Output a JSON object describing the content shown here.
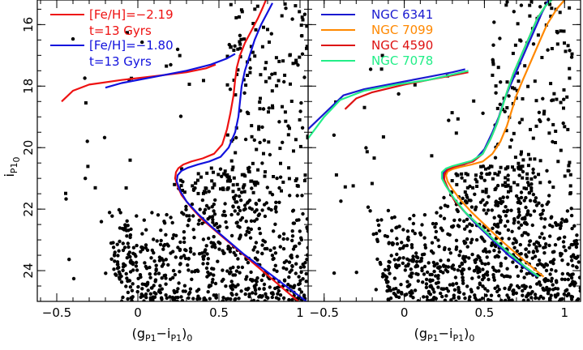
{
  "chart_data": [
    {
      "type": "scatter",
      "panel": "left",
      "xlabel": {
        "main": "(g",
        "sub1": "P1",
        "mid": "−i",
        "sub2": "P1",
        "close": ")",
        "sub3": "0"
      },
      "ylabel": {
        "main": "i",
        "sub": "P1",
        "subsub": "0"
      },
      "xlim": [
        -0.62,
        1.05
      ],
      "ylim": [
        25.0,
        15.2
      ],
      "x_ticks": [
        -0.5,
        0,
        0.5,
        1
      ],
      "x_tick_labels": [
        "−0.5",
        "0",
        "0.5",
        "1"
      ],
      "y_ticks": [
        16,
        18,
        20,
        22,
        24
      ],
      "y_tick_labels": [
        "16",
        "18",
        "20",
        "22",
        "24"
      ],
      "legend_position": "top-left",
      "series": [
        {
          "name": "[Fe/H]=−2.19",
          "label_line2": "t=13 Gyrs",
          "color": "#ee1111",
          "x": [
            0.99,
            0.9,
            0.8,
            0.7,
            0.6,
            0.5,
            0.4,
            0.33,
            0.27,
            0.245,
            0.23,
            0.235,
            0.25,
            0.28,
            0.33,
            0.4,
            0.47,
            0.52,
            0.55,
            0.57,
            0.59,
            0.6,
            0.61,
            0.63,
            0.66,
            0.7,
            0.74,
            0.77,
            0.79
          ],
          "y": [
            25.0,
            24.6,
            24.15,
            23.7,
            23.25,
            22.8,
            22.35,
            21.95,
            21.55,
            21.25,
            21.0,
            20.8,
            20.67,
            20.55,
            20.45,
            20.35,
            20.2,
            19.9,
            19.4,
            18.9,
            18.3,
            17.8,
            17.4,
            17.0,
            16.6,
            16.2,
            15.8,
            15.45,
            15.2
          ]
        },
        {
          "name": "[Fe/H]=−1.80",
          "label_line2": "t=13 Gyrs",
          "color": "#1111dd",
          "x": [
            1.04,
            0.95,
            0.85,
            0.75,
            0.65,
            0.55,
            0.45,
            0.37,
            0.3,
            0.26,
            0.24,
            0.245,
            0.27,
            0.31,
            0.37,
            0.44,
            0.51,
            0.56,
            0.6,
            0.62,
            0.63,
            0.64,
            0.66,
            0.69,
            0.72,
            0.76,
            0.8,
            0.83
          ],
          "y": [
            25.0,
            24.65,
            24.25,
            23.85,
            23.45,
            23.0,
            22.55,
            22.15,
            21.75,
            21.4,
            21.1,
            20.9,
            20.75,
            20.65,
            20.55,
            20.45,
            20.3,
            20.0,
            19.5,
            19.0,
            18.5,
            18.0,
            17.5,
            17.0,
            16.5,
            16.0,
            15.6,
            15.3
          ]
        },
        {
          "name": "HB [Fe/H]=−2.19",
          "color": "#ee1111",
          "x": [
            -0.47,
            -0.4,
            -0.3,
            -0.1,
            0.1,
            0.3,
            0.42,
            0.48
          ],
          "y": [
            18.5,
            18.15,
            17.95,
            17.8,
            17.68,
            17.55,
            17.42,
            17.3
          ]
        },
        {
          "name": "HB [Fe/H]=−1.80",
          "color": "#1111dd",
          "x": [
            -0.2,
            -0.1,
            0.1,
            0.3,
            0.45,
            0.55,
            0.6
          ],
          "y": [
            18.05,
            17.9,
            17.7,
            17.5,
            17.3,
            17.1,
            16.95
          ]
        }
      ]
    },
    {
      "type": "scatter",
      "panel": "right",
      "xlabel": {
        "main": "(g",
        "sub1": "P1",
        "mid": "−i",
        "sub2": "P1",
        "close": ")",
        "sub3": "0"
      },
      "xlim": [
        -0.6,
        1.1
      ],
      "ylim": [
        25.0,
        15.2
      ],
      "x_ticks": [
        -0.5,
        0,
        0.5,
        1
      ],
      "x_tick_labels": [
        "−0.5",
        "0",
        "0.5",
        "1"
      ],
      "y_ticks": [
        16,
        18,
        20,
        22,
        24
      ],
      "legend_position": "top-left",
      "series": [
        {
          "name": "NGC 6341",
          "color": "#1a1ad0",
          "x": [
            0.83,
            0.75,
            0.65,
            0.55,
            0.45,
            0.37,
            0.3,
            0.26,
            0.24,
            0.245,
            0.27,
            0.31,
            0.37,
            0.44,
            0.5,
            0.55,
            0.59,
            0.62,
            0.66,
            0.71,
            0.76,
            0.81,
            0.86,
            0.9
          ],
          "y": [
            24.2,
            23.9,
            23.5,
            23.0,
            22.5,
            22.05,
            21.6,
            21.2,
            20.95,
            20.8,
            20.7,
            20.62,
            20.55,
            20.4,
            20.05,
            19.5,
            19.0,
            18.5,
            18.0,
            17.4,
            16.8,
            16.2,
            15.6,
            15.2
          ],
          "hb_x": [
            -0.6,
            -0.5,
            -0.38,
            -0.25,
            -0.05,
            0.15,
            0.3,
            0.38
          ],
          "hb_y": [
            19.4,
            18.9,
            18.3,
            18.1,
            17.9,
            17.7,
            17.55,
            17.45
          ]
        },
        {
          "name": "NGC 7099",
          "color": "#ff8800",
          "x": [
            0.87,
            0.8,
            0.7,
            0.6,
            0.5,
            0.42,
            0.35,
            0.3,
            0.27,
            0.26,
            0.27,
            0.3,
            0.35,
            0.42,
            0.49,
            0.55,
            0.6,
            0.64,
            0.67,
            0.7,
            0.74,
            0.79,
            0.84,
            0.89,
            0.95,
            1.0
          ],
          "y": [
            24.2,
            23.9,
            23.45,
            23.0,
            22.5,
            22.1,
            21.7,
            21.35,
            21.1,
            20.9,
            20.78,
            20.7,
            20.63,
            20.55,
            20.45,
            20.2,
            19.8,
            19.3,
            18.8,
            18.3,
            17.8,
            17.2,
            16.6,
            16.0,
            15.5,
            15.2
          ]
        },
        {
          "name": "NGC 4590",
          "color": "#dd1111",
          "x": [
            0.84,
            0.76,
            0.66,
            0.56,
            0.46,
            0.38,
            0.31,
            0.27,
            0.25,
            0.25,
            0.27,
            0.31,
            0.36,
            0.43,
            0.49,
            0.54,
            0.58,
            0.61,
            0.64,
            0.68,
            0.73,
            0.78,
            0.83,
            0.88,
            0.92
          ],
          "y": [
            24.2,
            23.9,
            23.45,
            23.0,
            22.5,
            22.1,
            21.7,
            21.3,
            21.05,
            20.85,
            20.72,
            20.63,
            20.55,
            20.45,
            20.2,
            19.7,
            19.2,
            18.7,
            18.2,
            17.6,
            17.0,
            16.4,
            15.8,
            15.4,
            15.2
          ],
          "hb_x": [
            -0.37,
            -0.3,
            -0.2,
            0.0,
            0.15,
            0.3,
            0.4
          ],
          "hb_y": [
            18.75,
            18.4,
            18.2,
            17.95,
            17.8,
            17.65,
            17.55
          ]
        },
        {
          "name": "NGC 7078",
          "color": "#22ee88",
          "x": [
            0.84,
            0.76,
            0.66,
            0.56,
            0.46,
            0.38,
            0.31,
            0.26,
            0.235,
            0.235,
            0.26,
            0.3,
            0.35,
            0.42,
            0.49,
            0.54,
            0.58,
            0.61,
            0.64,
            0.68,
            0.73,
            0.78,
            0.83,
            0.88,
            0.92
          ],
          "y": [
            24.2,
            23.9,
            23.45,
            23.0,
            22.5,
            22.1,
            21.65,
            21.25,
            21.0,
            20.8,
            20.68,
            20.6,
            20.53,
            20.43,
            20.2,
            19.7,
            19.2,
            18.7,
            18.2,
            17.6,
            17.0,
            16.4,
            15.8,
            15.4,
            15.2
          ],
          "hb_x": [
            -0.6,
            -0.5,
            -0.4,
            -0.25,
            -0.05,
            0.15,
            0.3,
            0.4
          ],
          "hb_y": [
            19.7,
            19.0,
            18.45,
            18.15,
            17.95,
            17.8,
            17.62,
            17.5
          ]
        }
      ]
    }
  ]
}
